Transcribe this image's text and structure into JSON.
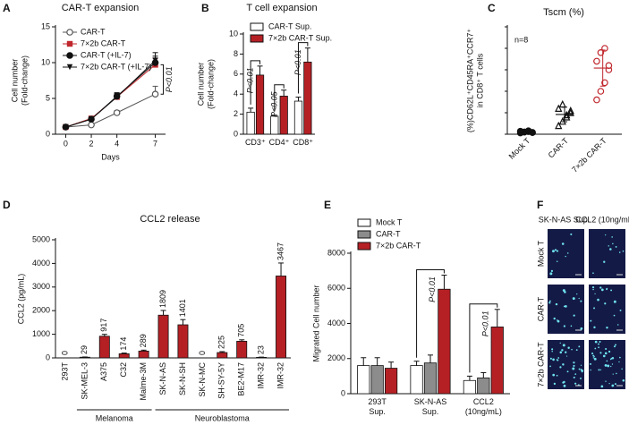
{
  "chart_data": [
    {
      "type": "line",
      "label": "A",
      "title": "CAR-T expansion",
      "xlabel": "Days",
      "ylabel": [
        "Cell number",
        "(Fold-change)"
      ],
      "x": [
        0,
        2,
        4,
        7
      ],
      "xlim": [
        -0.8,
        7.8
      ],
      "xticks": [
        0,
        2,
        4,
        7
      ],
      "ylim": [
        0,
        15
      ],
      "yticks": [
        0,
        5,
        10,
        15
      ],
      "series": [
        {
          "name": "CAR-T",
          "color": "#555555",
          "marker": "circle-open",
          "values": [
            1,
            1.3,
            3,
            5.6
          ],
          "errors": [
            0.1,
            0.1,
            0.3,
            1.1
          ]
        },
        {
          "name": "7×2b CAR-T",
          "color": "#c0272d",
          "marker": "square",
          "values": [
            1,
            2.2,
            5.2,
            9.7
          ],
          "errors": [
            0.1,
            0.2,
            0.5,
            0.9
          ]
        },
        {
          "name": "CAR-T (+IL-7)",
          "color": "#111111",
          "marker": "circle",
          "values": [
            1,
            2.1,
            5.3,
            10
          ],
          "errors": [
            0.1,
            0.2,
            0.5,
            0.9
          ]
        },
        {
          "name": "7×2b CAR-T  (+IL-7)",
          "color": "#111111",
          "marker": "triangle-down",
          "values": [
            1,
            2.1,
            5.2,
            10.3
          ],
          "errors": [
            0.1,
            0.2,
            0.5,
            1.1
          ]
        }
      ],
      "annotation": "P<0.01"
    },
    {
      "type": "bar",
      "label": "B",
      "title": "T cell expansion",
      "ylabel": [
        "Cell number",
        "(Fold-change)"
      ],
      "categories": [
        [
          "CD3⁺"
        ],
        [
          "CD4⁺"
        ],
        [
          "CD8⁺"
        ]
      ],
      "ylim": [
        0,
        10
      ],
      "yticks": [
        0,
        2,
        4,
        6,
        8,
        10
      ],
      "series": [
        {
          "name": "CAR-T Sup.",
          "color": "#ffffff",
          "values": [
            2.2,
            1.8,
            3.3
          ],
          "errors": [
            0.4,
            0.1,
            0.4
          ]
        },
        {
          "name": "7×2b CAR-T Sup.",
          "color": "#b52025",
          "values": [
            5.9,
            3.8,
            7.2
          ],
          "errors": [
            0.9,
            0.6,
            1.4
          ]
        }
      ],
      "significance": [
        "P<0.01",
        "P<0.05",
        "P<0.01"
      ]
    },
    {
      "type": "strip",
      "label": "C",
      "title": "Tscm (%)",
      "ylabel": [
        "(%)CD62L⁺CD45RA⁺CCR7⁺",
        "in CD8⁺ T cells"
      ],
      "note": "n=8",
      "categories": [
        "Mock T",
        "CAR-T",
        "7×2b CAR-T"
      ],
      "ylim": [
        0,
        25
      ],
      "colors": [
        "#111111",
        "#111111",
        "#c0272d"
      ],
      "markers": [
        "circle",
        "triangle-open",
        "circle-open"
      ],
      "points": [
        [
          0.3,
          0.5,
          0.6,
          0.4,
          0.7,
          0.5,
          0.8,
          0.4
        ],
        [
          2,
          3,
          4,
          5,
          6,
          7,
          4.5,
          5.5
        ],
        [
          8,
          10,
          12,
          15,
          17,
          19,
          20,
          16
        ]
      ],
      "means": [
        0.5,
        4.6,
        15.4
      ],
      "errors": [
        0.2,
        1.7,
        4.2
      ]
    },
    {
      "type": "bar",
      "label": "D",
      "title": "CCL2 release",
      "ylabel": [
        "CCL2 (pg/mL)"
      ],
      "categories": [
        [
          "293T"
        ],
        [
          "SK-MEL-3"
        ],
        [
          "A375"
        ],
        [
          "C32"
        ],
        [
          "Malme-3M"
        ],
        [
          "SK-N-AS"
        ],
        [
          "SK-N-SH"
        ],
        [
          "SK-N-MC"
        ],
        [
          "SH-SY-5Y"
        ],
        [
          "BE2-M17"
        ],
        [
          "IMR-32"
        ],
        [
          "IMR-32"
        ]
      ],
      "color": "#b52025",
      "values": [
        0,
        29,
        917,
        174,
        289,
        1809,
        1401,
        0,
        225,
        705,
        23,
        3467
      ],
      "errors": [
        0,
        10,
        80,
        30,
        40,
        200,
        220,
        0,
        40,
        60,
        10,
        550
      ],
      "ylim": [
        0,
        5000
      ],
      "yticks": [
        0,
        1000,
        2000,
        3000,
        4000,
        5000
      ],
      "groups": [
        "Melanoma",
        "Neuroblastoma"
      ]
    },
    {
      "type": "bar",
      "label": "E",
      "ylabel": [
        "Migrated Cell number"
      ],
      "categories": [
        [
          "293T",
          "Sup."
        ],
        [
          "SK-N-AS",
          "Sup."
        ],
        [
          "CCL2",
          "(10ng/mL)"
        ]
      ],
      "ylim": [
        0,
        8000
      ],
      "yticks": [
        0,
        2000,
        4000,
        6000,
        8000
      ],
      "series": [
        {
          "name": "Mock T",
          "color": "#ffffff",
          "values": [
            1600,
            1600,
            750
          ],
          "errors": [
            450,
            250,
            250
          ]
        },
        {
          "name": "CAR-T",
          "color": "#8c8c8c",
          "values": [
            1600,
            1750,
            900
          ],
          "errors": [
            450,
            450,
            300
          ]
        },
        {
          "name": "7×2b CAR-T",
          "color": "#b52025",
          "values": [
            1450,
            5950,
            3800
          ],
          "errors": [
            350,
            800,
            1000
          ]
        }
      ],
      "significance": [
        null,
        "P<0.01",
        "P<0.01"
      ]
    }
  ],
  "micrographs": {
    "label": "F",
    "columns": [
      "SK-N-AS Sup.",
      "CCL2 (10ng/mL)"
    ],
    "rows": [
      "Mock T",
      "CAR-T",
      "7×2b CAR-T"
    ]
  }
}
